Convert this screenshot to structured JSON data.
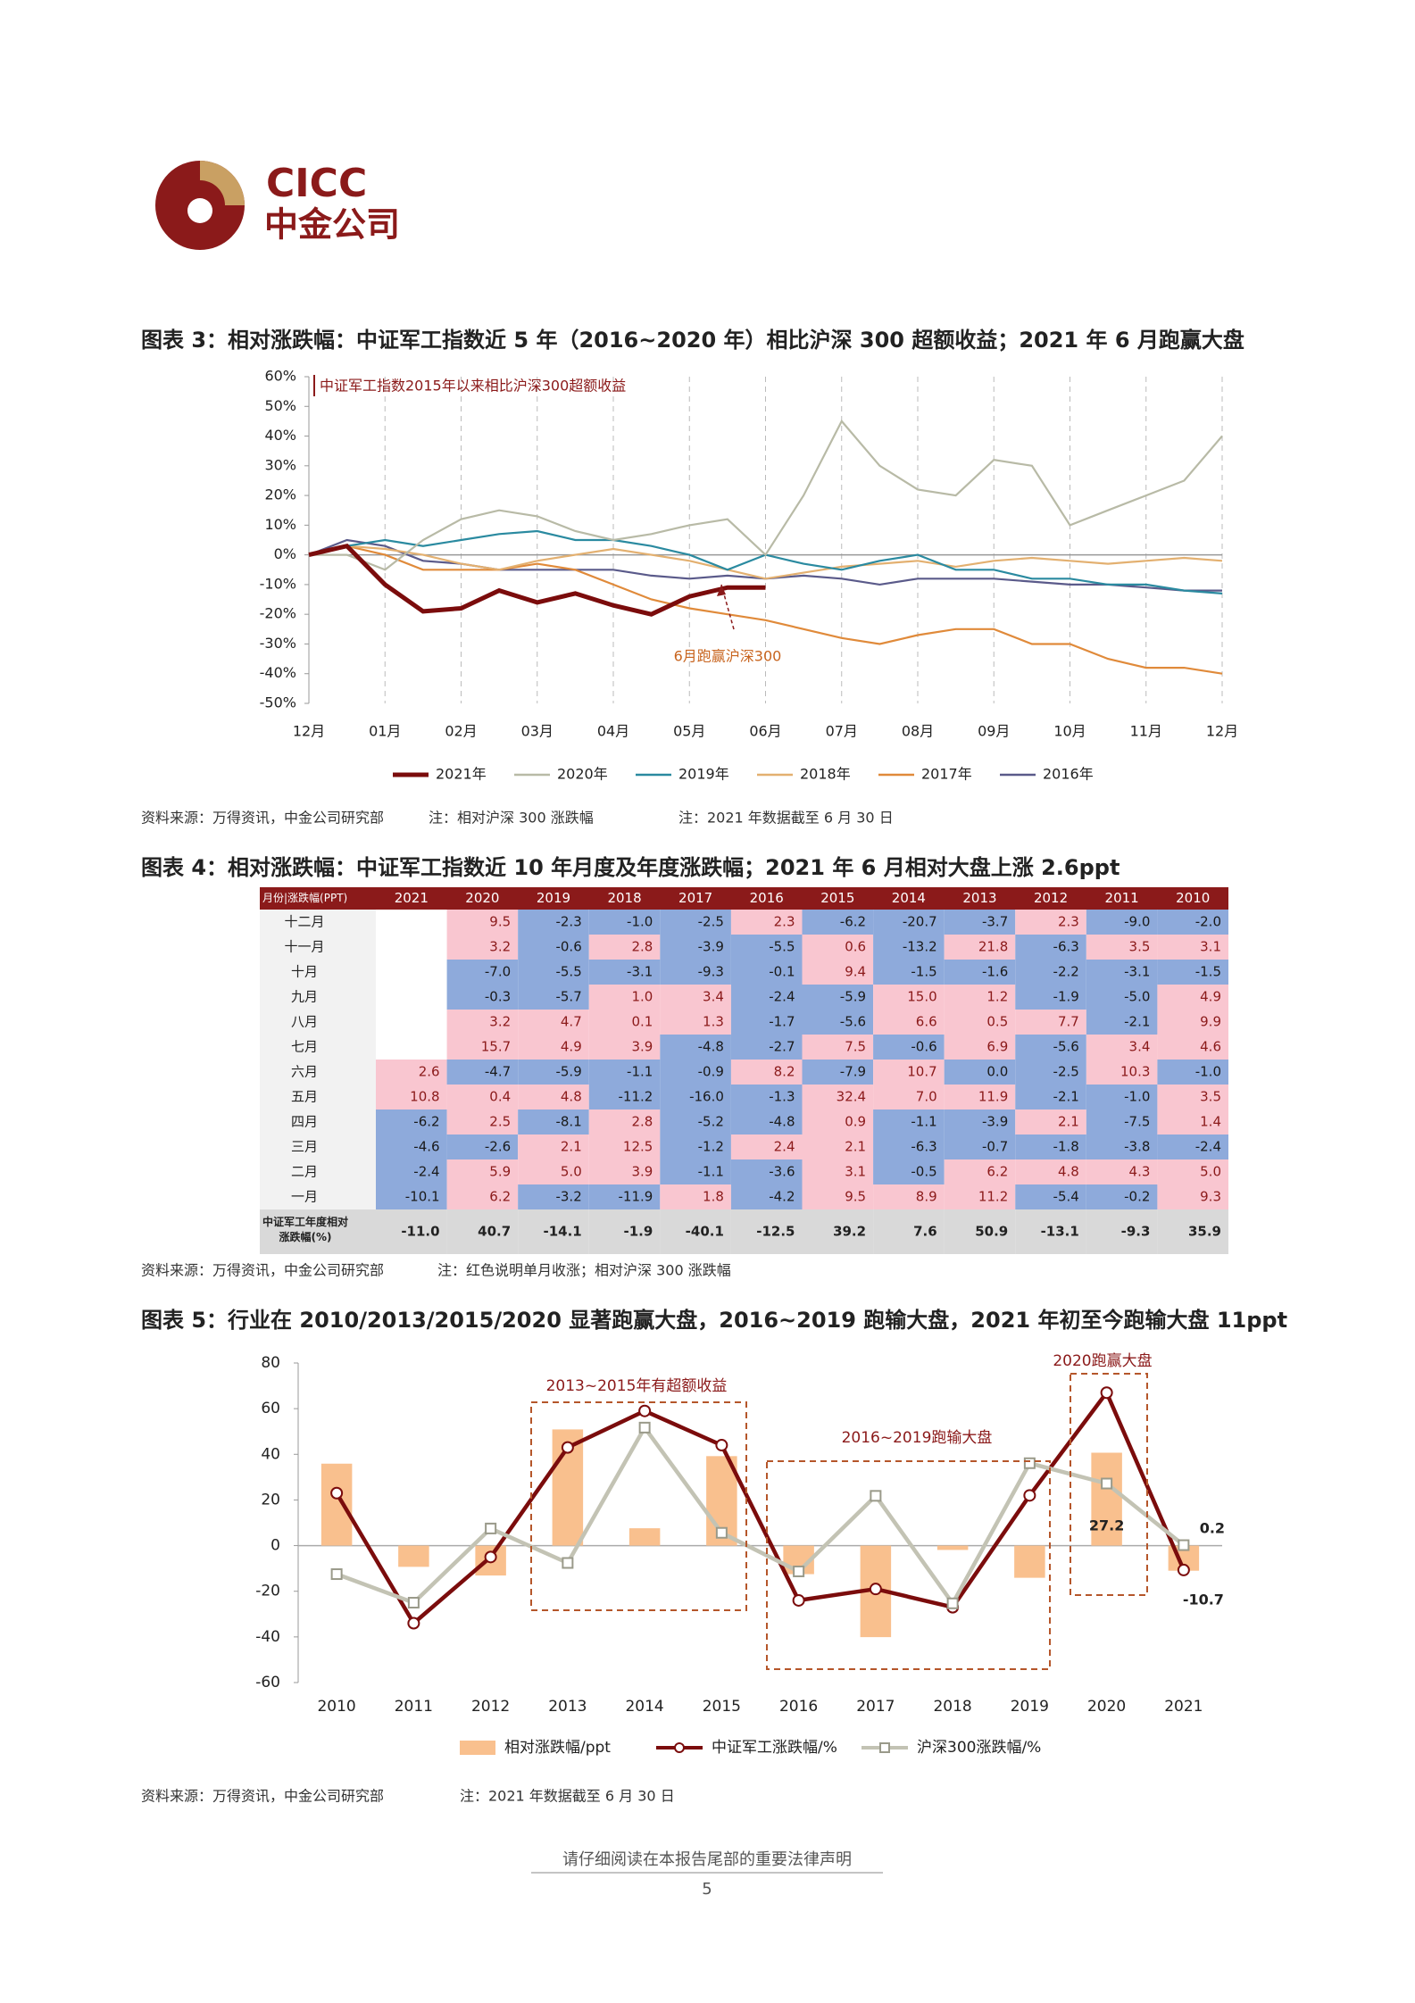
{
  "header": {
    "logo_en": "CICC",
    "logo_cn": "中金公司"
  },
  "document": {
    "fig3_title": "图表 3：相对涨跌幅：中证军工指数近 5 年（2016~2020 年）相比沪深 300 超额收益；2021 年 6 月跑赢大盘",
    "fig3_source": [
      "资料来源：万得资讯，中金公司研究部",
      "注：相对沪深 300 涨跌幅",
      "注：2021 年数据截至 6 月 30 日"
    ],
    "fig4_title": "图表 4：相对涨跌幅：中证军工指数近 10 年月度及年度涨跌幅；2021 年 6 月相对大盘上涨 2.6ppt",
    "fig4_source": [
      "资料来源：万得资讯，中金公司研究部",
      "注：红色说明单月收涨；相对沪深 300 涨跌幅"
    ],
    "fig5_title": "图表 5：行业在 2010/2013/2015/2020 显著跑赢大盘，2016~2019 跑输大盘，2021 年初至今跑输大盘 11ppt",
    "fig5_source": [
      "资料来源：万得资讯，中金公司研究部",
      "注：2021 年数据截至 6 月 30 日"
    ],
    "footer": "请仔细阅读在本报告尾部的重要法律声明",
    "page": "5"
  },
  "chart_data": [
    {
      "type": "line",
      "annotations": [
        "中证军工指数2015年以来相比沪深300超额收益",
        "6月跑赢沪深300"
      ],
      "categories": [
        "12月",
        null,
        "01月",
        null,
        "02月",
        null,
        "03月",
        null,
        "04月",
        null,
        "05月",
        null,
        "06月",
        null,
        "07月",
        null,
        "08月",
        null,
        "09月",
        null,
        "10月",
        null,
        "11月",
        null,
        "12月"
      ],
      "ylim": [
        -50,
        60
      ],
      "yticks": [
        {
          "value": -50,
          "label": "-50%"
        },
        {
          "value": -40,
          "label": "-40%"
        },
        {
          "value": -30,
          "label": "-30%"
        },
        {
          "value": -20,
          "label": "-20%"
        },
        {
          "value": -10,
          "label": "-10%"
        },
        {
          "value": 0,
          "label": "0%"
        },
        {
          "value": 10,
          "label": "10%"
        },
        {
          "value": 20,
          "label": "20%"
        },
        {
          "value": 30,
          "label": "30%"
        },
        {
          "value": 40,
          "label": "40%"
        },
        {
          "value": 50,
          "label": "50%"
        },
        {
          "value": 60,
          "label": "60%"
        }
      ],
      "legend": "bottom",
      "series": [
        {
          "name": "2021年",
          "color": "#7b0c0c",
          "values": [
            0,
            3,
            -10,
            -19,
            -18,
            -12,
            -16,
            -13,
            -17,
            -20,
            -14,
            -11,
            -11,
            null,
            null,
            null,
            null,
            null,
            null,
            null,
            null,
            null,
            null,
            null,
            null
          ]
        },
        {
          "name": "2020年",
          "color": "#b8baa6",
          "values": [
            0,
            0,
            -5,
            5,
            12,
            15,
            13,
            8,
            5,
            7,
            10,
            12,
            0,
            20,
            45,
            30,
            22,
            20,
            32,
            30,
            10,
            15,
            20,
            25,
            40
          ]
        },
        {
          "name": "2019年",
          "color": "#2a8aa0",
          "values": [
            0,
            3,
            5,
            3,
            5,
            7,
            8,
            5,
            5,
            3,
            0,
            -5,
            0,
            -3,
            -5,
            -2,
            0,
            -5,
            -5,
            -8,
            -8,
            -10,
            -10,
            -12,
            -13
          ]
        },
        {
          "name": "2018年",
          "color": "#e3b070",
          "values": [
            0,
            3,
            2,
            0,
            -3,
            -5,
            -2,
            0,
            2,
            0,
            -2,
            -5,
            -8,
            -6,
            -4,
            -3,
            -2,
            -4,
            -2,
            -1,
            -2,
            -3,
            -2,
            -1,
            -2
          ]
        },
        {
          "name": "2017年",
          "color": "#e08a3a",
          "values": [
            0,
            3,
            0,
            -5,
            -5,
            -5,
            -3,
            -5,
            -10,
            -15,
            -18,
            -20,
            -22,
            -25,
            -28,
            -30,
            -27,
            -25,
            -25,
            -30,
            -30,
            -35,
            -38,
            -38,
            -40
          ]
        },
        {
          "name": "2016年",
          "color": "#5a5a8a",
          "values": [
            0,
            5,
            3,
            -2,
            -3,
            -5,
            -5,
            -5,
            -5,
            -7,
            -8,
            -7,
            -8,
            -7,
            -8,
            -10,
            -8,
            -8,
            -8,
            -9,
            -10,
            -10,
            -11,
            -12,
            -12
          ]
        }
      ]
    },
    {
      "type": "combo",
      "annotations": [
        "2013~2015年有超额收益",
        "2016~2019跑输大盘",
        "2020跑赢大盘"
      ],
      "categories": [
        "2010",
        "2011",
        "2012",
        "2013",
        "2014",
        "2015",
        "2016",
        "2017",
        "2018",
        "2019",
        "2020",
        "2021"
      ],
      "ylim": [
        -60,
        80
      ],
      "yticks": [
        -60,
        -40,
        -20,
        0,
        20,
        40,
        60,
        80
      ],
      "legend": "bottom",
      "series": [
        {
          "name": "相对涨跌幅/ppt",
          "mark": "bar",
          "color": "#f9c08e",
          "values": [
            35.9,
            -9.3,
            -13.1,
            50.9,
            7.6,
            39.2,
            -12.5,
            -40.1,
            -1.9,
            -14.1,
            40.7,
            -11.0
          ]
        },
        {
          "name": "中证军工涨跌幅/%",
          "mark": "line",
          "color": "#7b0c0c",
          "values": [
            23,
            -34,
            -5,
            43,
            59,
            44,
            -24,
            -19,
            -27,
            22,
            67,
            -10.7
          ],
          "value_labels": [
            null,
            null,
            null,
            null,
            null,
            null,
            null,
            null,
            null,
            null,
            null,
            "-10.7"
          ]
        },
        {
          "name": "沪深300涨跌幅/%",
          "mark": "line",
          "color": "#c3c3b4",
          "values": [
            -12.5,
            -25,
            7.5,
            -7.6,
            51.7,
            5.6,
            -11.3,
            21.8,
            -25.3,
            36.1,
            27.2,
            0.2
          ],
          "value_labels": [
            null,
            null,
            null,
            null,
            null,
            null,
            null,
            null,
            null,
            null,
            "27.2",
            "0.2"
          ]
        }
      ]
    }
  ],
  "table": {
    "header": [
      "月份|涨跌幅(PPT)",
      "2021",
      "2020",
      "2019",
      "2018",
      "2017",
      "2016",
      "2015",
      "2014",
      "2013",
      "2012",
      "2011",
      "2010"
    ],
    "rows": [
      [
        "十二月",
        null,
        "9.5",
        "-2.3",
        "-1.0",
        "-2.5",
        "2.3",
        "-6.2",
        "-20.7",
        "-3.7",
        "2.3",
        "-9.0",
        "-2.0"
      ],
      [
        "十一月",
        null,
        "3.2",
        "-0.6",
        "2.8",
        "-3.9",
        "-5.5",
        "0.6",
        "-13.2",
        "21.8",
        "-6.3",
        "3.5",
        "3.1"
      ],
      [
        "十月",
        null,
        "-7.0",
        "-5.5",
        "-3.1",
        "-9.3",
        "-0.1",
        "9.4",
        "-1.5",
        "-1.6",
        "-2.2",
        "-3.1",
        "-1.5"
      ],
      [
        "九月",
        null,
        "-0.3",
        "-5.7",
        "1.0",
        "3.4",
        "-2.4",
        "-5.9",
        "15.0",
        "1.2",
        "-1.9",
        "-5.0",
        "4.9"
      ],
      [
        "八月",
        null,
        "3.2",
        "4.7",
        "0.1",
        "1.3",
        "-1.7",
        "-5.6",
        "6.6",
        "0.5",
        "7.7",
        "-2.1",
        "9.9"
      ],
      [
        "七月",
        null,
        "15.7",
        "4.9",
        "3.9",
        "-4.8",
        "-2.7",
        "7.5",
        "-0.6",
        "6.9",
        "-5.6",
        "3.4",
        "4.6"
      ],
      [
        "六月",
        "2.6",
        "-4.7",
        "-5.9",
        "-1.1",
        "-0.9",
        "8.2",
        "-7.9",
        "10.7",
        "0.0",
        "-2.5",
        "10.3",
        "-1.0"
      ],
      [
        "五月",
        "10.8",
        "0.4",
        "4.8",
        "-11.2",
        "-16.0",
        "-1.3",
        "32.4",
        "7.0",
        "11.9",
        "-2.1",
        "-1.0",
        "3.5"
      ],
      [
        "四月",
        "-6.2",
        "2.5",
        "-8.1",
        "2.8",
        "-5.2",
        "-4.8",
        "0.9",
        "-1.1",
        "-3.9",
        "2.1",
        "-7.5",
        "1.4"
      ],
      [
        "三月",
        "-4.6",
        "-2.6",
        "2.1",
        "12.5",
        "-1.2",
        "2.4",
        "2.1",
        "-6.3",
        "-0.7",
        "-1.8",
        "-3.8",
        "-2.4"
      ],
      [
        "二月",
        "-2.4",
        "5.9",
        "5.0",
        "3.9",
        "-1.1",
        "-3.6",
        "3.1",
        "-0.5",
        "6.2",
        "4.8",
        "4.3",
        "5.0"
      ],
      [
        "一月",
        "-10.1",
        "6.2",
        "-3.2",
        "-11.9",
        "1.8",
        "-4.2",
        "9.5",
        "8.9",
        "11.2",
        "-5.4",
        "-0.2",
        "9.3"
      ]
    ],
    "footer_row": [
      "中证军工年度相对涨跌幅(%)",
      "-11.0",
      "40.7",
      "-14.1",
      "-1.9",
      "-40.1",
      "-12.5",
      "39.2",
      "7.6",
      "50.9",
      "-13.1",
      "-9.3",
      "35.9"
    ]
  }
}
